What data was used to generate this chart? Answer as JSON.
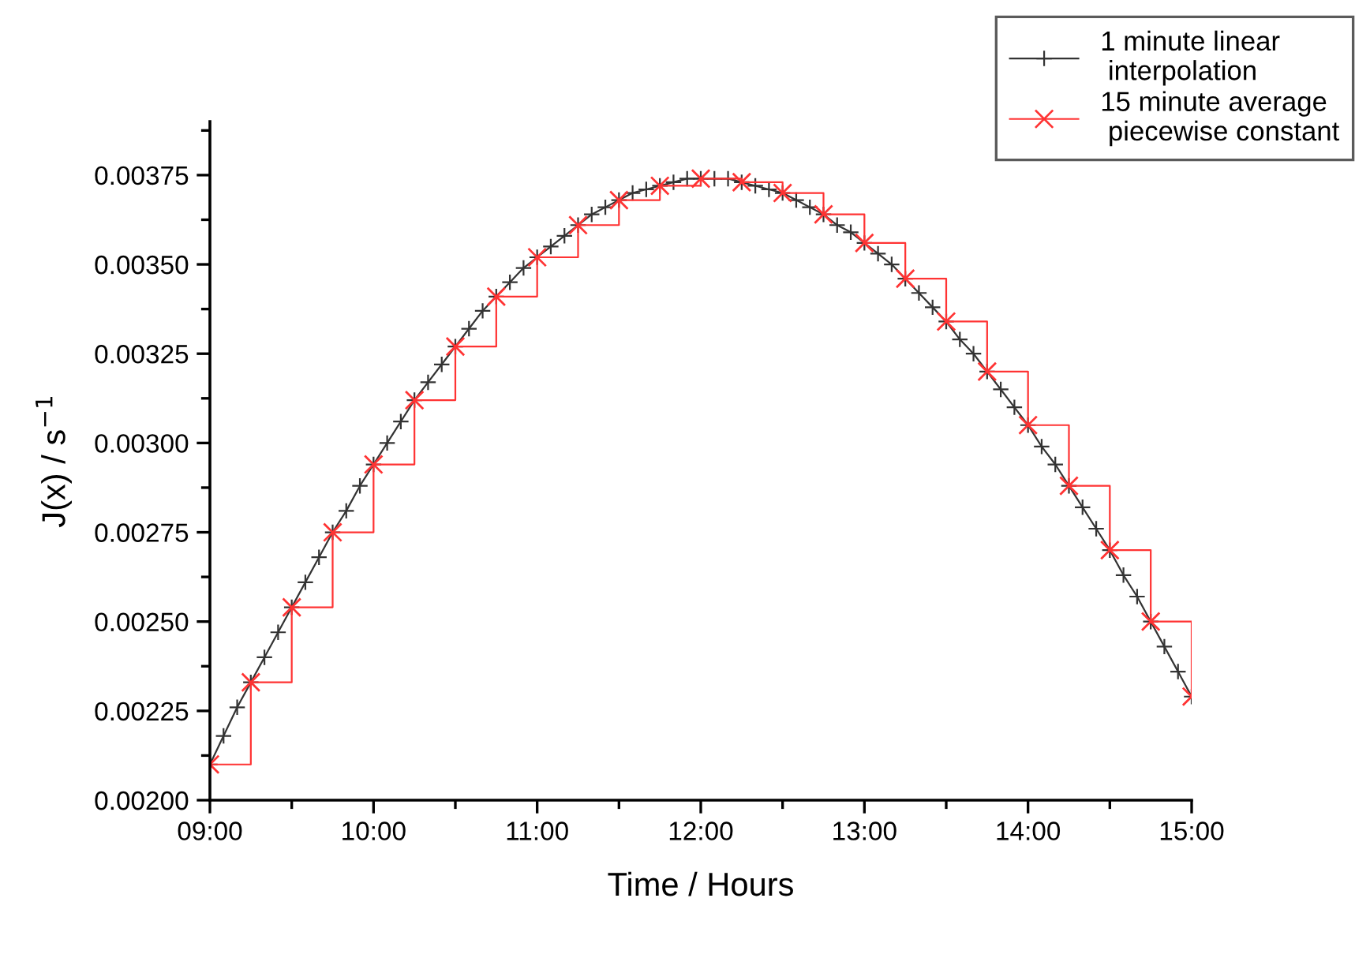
{
  "chart_data": {
    "type": "line",
    "xlabel": "Time / Hours",
    "ylabel": "J(x) / s$^{−1}$",
    "xlim": [
      9,
      15
    ],
    "xticks": [
      {
        "value": 9,
        "label": "09:00"
      },
      {
        "value": 10,
        "label": "10:00"
      },
      {
        "value": 11,
        "label": "11:00"
      },
      {
        "value": 12,
        "label": "12:00"
      },
      {
        "value": 13,
        "label": "13:00"
      },
      {
        "value": 14,
        "label": "14:00"
      },
      {
        "value": 15,
        "label": "15:00"
      }
    ],
    "ylim": [
      0.002,
      0.0039
    ],
    "yticks": [
      {
        "value": 0.002,
        "label": "0.00200"
      },
      {
        "value": 0.00225,
        "label": "0.00225"
      },
      {
        "value": 0.0025,
        "label": "0.00250"
      },
      {
        "value": 0.00275,
        "label": "0.00275"
      },
      {
        "value": 0.003,
        "label": "0.00300"
      },
      {
        "value": 0.00325,
        "label": "0.00325"
      },
      {
        "value": 0.0035,
        "label": "0.00350"
      },
      {
        "value": 0.00375,
        "label": "0.00375"
      }
    ],
    "grid": false,
    "legend": "top right",
    "series": [
      {
        "name": "1 minute linear\n interpolation",
        "color": "#333333",
        "marker": "cross",
        "x": [
          9.0,
          9.0833,
          9.1667,
          9.25,
          9.3333,
          9.4167,
          9.5,
          9.5833,
          9.6667,
          9.75,
          9.8333,
          9.9167,
          10.0,
          10.0833,
          10.1667,
          10.25,
          10.3333,
          10.4167,
          10.5,
          10.5833,
          10.6667,
          10.75,
          10.8333,
          10.9167,
          11.0,
          11.0833,
          11.1667,
          11.25,
          11.3333,
          11.4167,
          11.5,
          11.5833,
          11.6667,
          11.75,
          11.8333,
          11.9167,
          12.0,
          12.0833,
          12.1667,
          12.25,
          12.3333,
          12.4167,
          12.5,
          12.5833,
          12.6667,
          12.75,
          12.8333,
          12.9167,
          13.0,
          13.0833,
          13.1667,
          13.25,
          13.3333,
          13.4167,
          13.5,
          13.5833,
          13.6667,
          13.75,
          13.8333,
          13.9167,
          14.0,
          14.0833,
          14.1667,
          14.25,
          14.3333,
          14.4167,
          14.5,
          14.5833,
          14.6667,
          14.75,
          14.8333,
          14.9167,
          15.0
        ],
        "values": [
          0.0021,
          0.00218,
          0.00226,
          0.00233,
          0.0024,
          0.00247,
          0.00254,
          0.00261,
          0.00268,
          0.00275,
          0.00281,
          0.00288,
          0.00294,
          0.003,
          0.00306,
          0.00312,
          0.00317,
          0.00322,
          0.00327,
          0.00332,
          0.00337,
          0.00341,
          0.00345,
          0.00349,
          0.00352,
          0.00355,
          0.00358,
          0.00361,
          0.00364,
          0.00366,
          0.00368,
          0.0037,
          0.00371,
          0.00372,
          0.00373,
          0.00374,
          0.00374,
          0.00374,
          0.00374,
          0.00373,
          0.00372,
          0.00371,
          0.0037,
          0.00368,
          0.00366,
          0.00364,
          0.00361,
          0.00359,
          0.00356,
          0.00353,
          0.0035,
          0.00346,
          0.00342,
          0.00338,
          0.00334,
          0.00329,
          0.00325,
          0.0032,
          0.00315,
          0.0031,
          0.00305,
          0.00299,
          0.00294,
          0.00288,
          0.00282,
          0.00276,
          0.0027,
          0.00263,
          0.00257,
          0.0025,
          0.00243,
          0.00236,
          0.00229
        ]
      },
      {
        "name": "15 minute average\n piecewise constant",
        "type": "step",
        "color": "#ff3333",
        "marker": "x",
        "x": [
          9.0,
          9.25,
          9.5,
          9.75,
          10.0,
          10.25,
          10.5,
          10.75,
          11.0,
          11.25,
          11.5,
          11.75,
          12.0,
          12.25,
          12.5,
          12.75,
          13.0,
          13.25,
          13.5,
          13.75,
          14.0,
          14.25,
          14.5,
          14.75,
          15.0
        ],
        "values": [
          0.0021,
          0.00233,
          0.00254,
          0.00275,
          0.00294,
          0.00312,
          0.00327,
          0.00341,
          0.00352,
          0.00361,
          0.00368,
          0.00372,
          0.00374,
          0.00373,
          0.0037,
          0.00364,
          0.00356,
          0.00346,
          0.00334,
          0.0032,
          0.00305,
          0.00288,
          0.0027,
          0.0025,
          0.00229
        ]
      }
    ]
  }
}
